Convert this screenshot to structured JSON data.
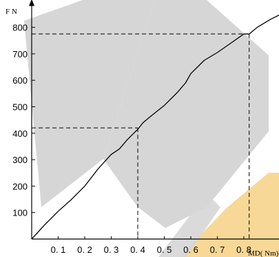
{
  "chart_data": {
    "type": "line",
    "title": "",
    "ylabel": "F N",
    "xlabel": "MD( Nm)",
    "x_ticks": [
      "0. 1",
      "0. 2",
      "0. 3",
      "0. 4",
      "0. 5",
      "0. 6",
      "0. 7",
      "0. 8"
    ],
    "x_tick_values": [
      0.1,
      0.2,
      0.3,
      0.4,
      0.5,
      0.6,
      0.7,
      0.8
    ],
    "y_ticks": [
      "100",
      "200",
      "300",
      "400",
      "500",
      "600",
      "700",
      "800"
    ],
    "y_tick_values": [
      100,
      200,
      300,
      400,
      500,
      600,
      700,
      800
    ],
    "xlim": [
      0,
      0.95
    ],
    "ylim": [
      0,
      860
    ],
    "grid": false,
    "series": [
      {
        "values_x": [
          0,
          0.05,
          0.1,
          0.15,
          0.2,
          0.25,
          0.3,
          0.33,
          0.36,
          0.38,
          0.4,
          0.42,
          0.45,
          0.5,
          0.55,
          0.58,
          0.6,
          0.65,
          0.7,
          0.75,
          0.8,
          0.82,
          0.85,
          0.9,
          0.94
        ],
        "values_y": [
          0,
          55,
          105,
          150,
          200,
          265,
          320,
          340,
          375,
          395,
          415,
          440,
          465,
          505,
          555,
          590,
          625,
          675,
          705,
          740,
          775,
          775,
          800,
          830,
          850
        ]
      }
    ],
    "annotations": [
      {
        "x": 0.4,
        "y": 420
      },
      {
        "x": 0.82,
        "y": 775
      }
    ]
  },
  "colors": {
    "line": "#000000",
    "axis": "#000000",
    "guide": "#000000",
    "watermark_gray": "#cfcfcf",
    "watermark_yellow": "#f5c86a"
  }
}
